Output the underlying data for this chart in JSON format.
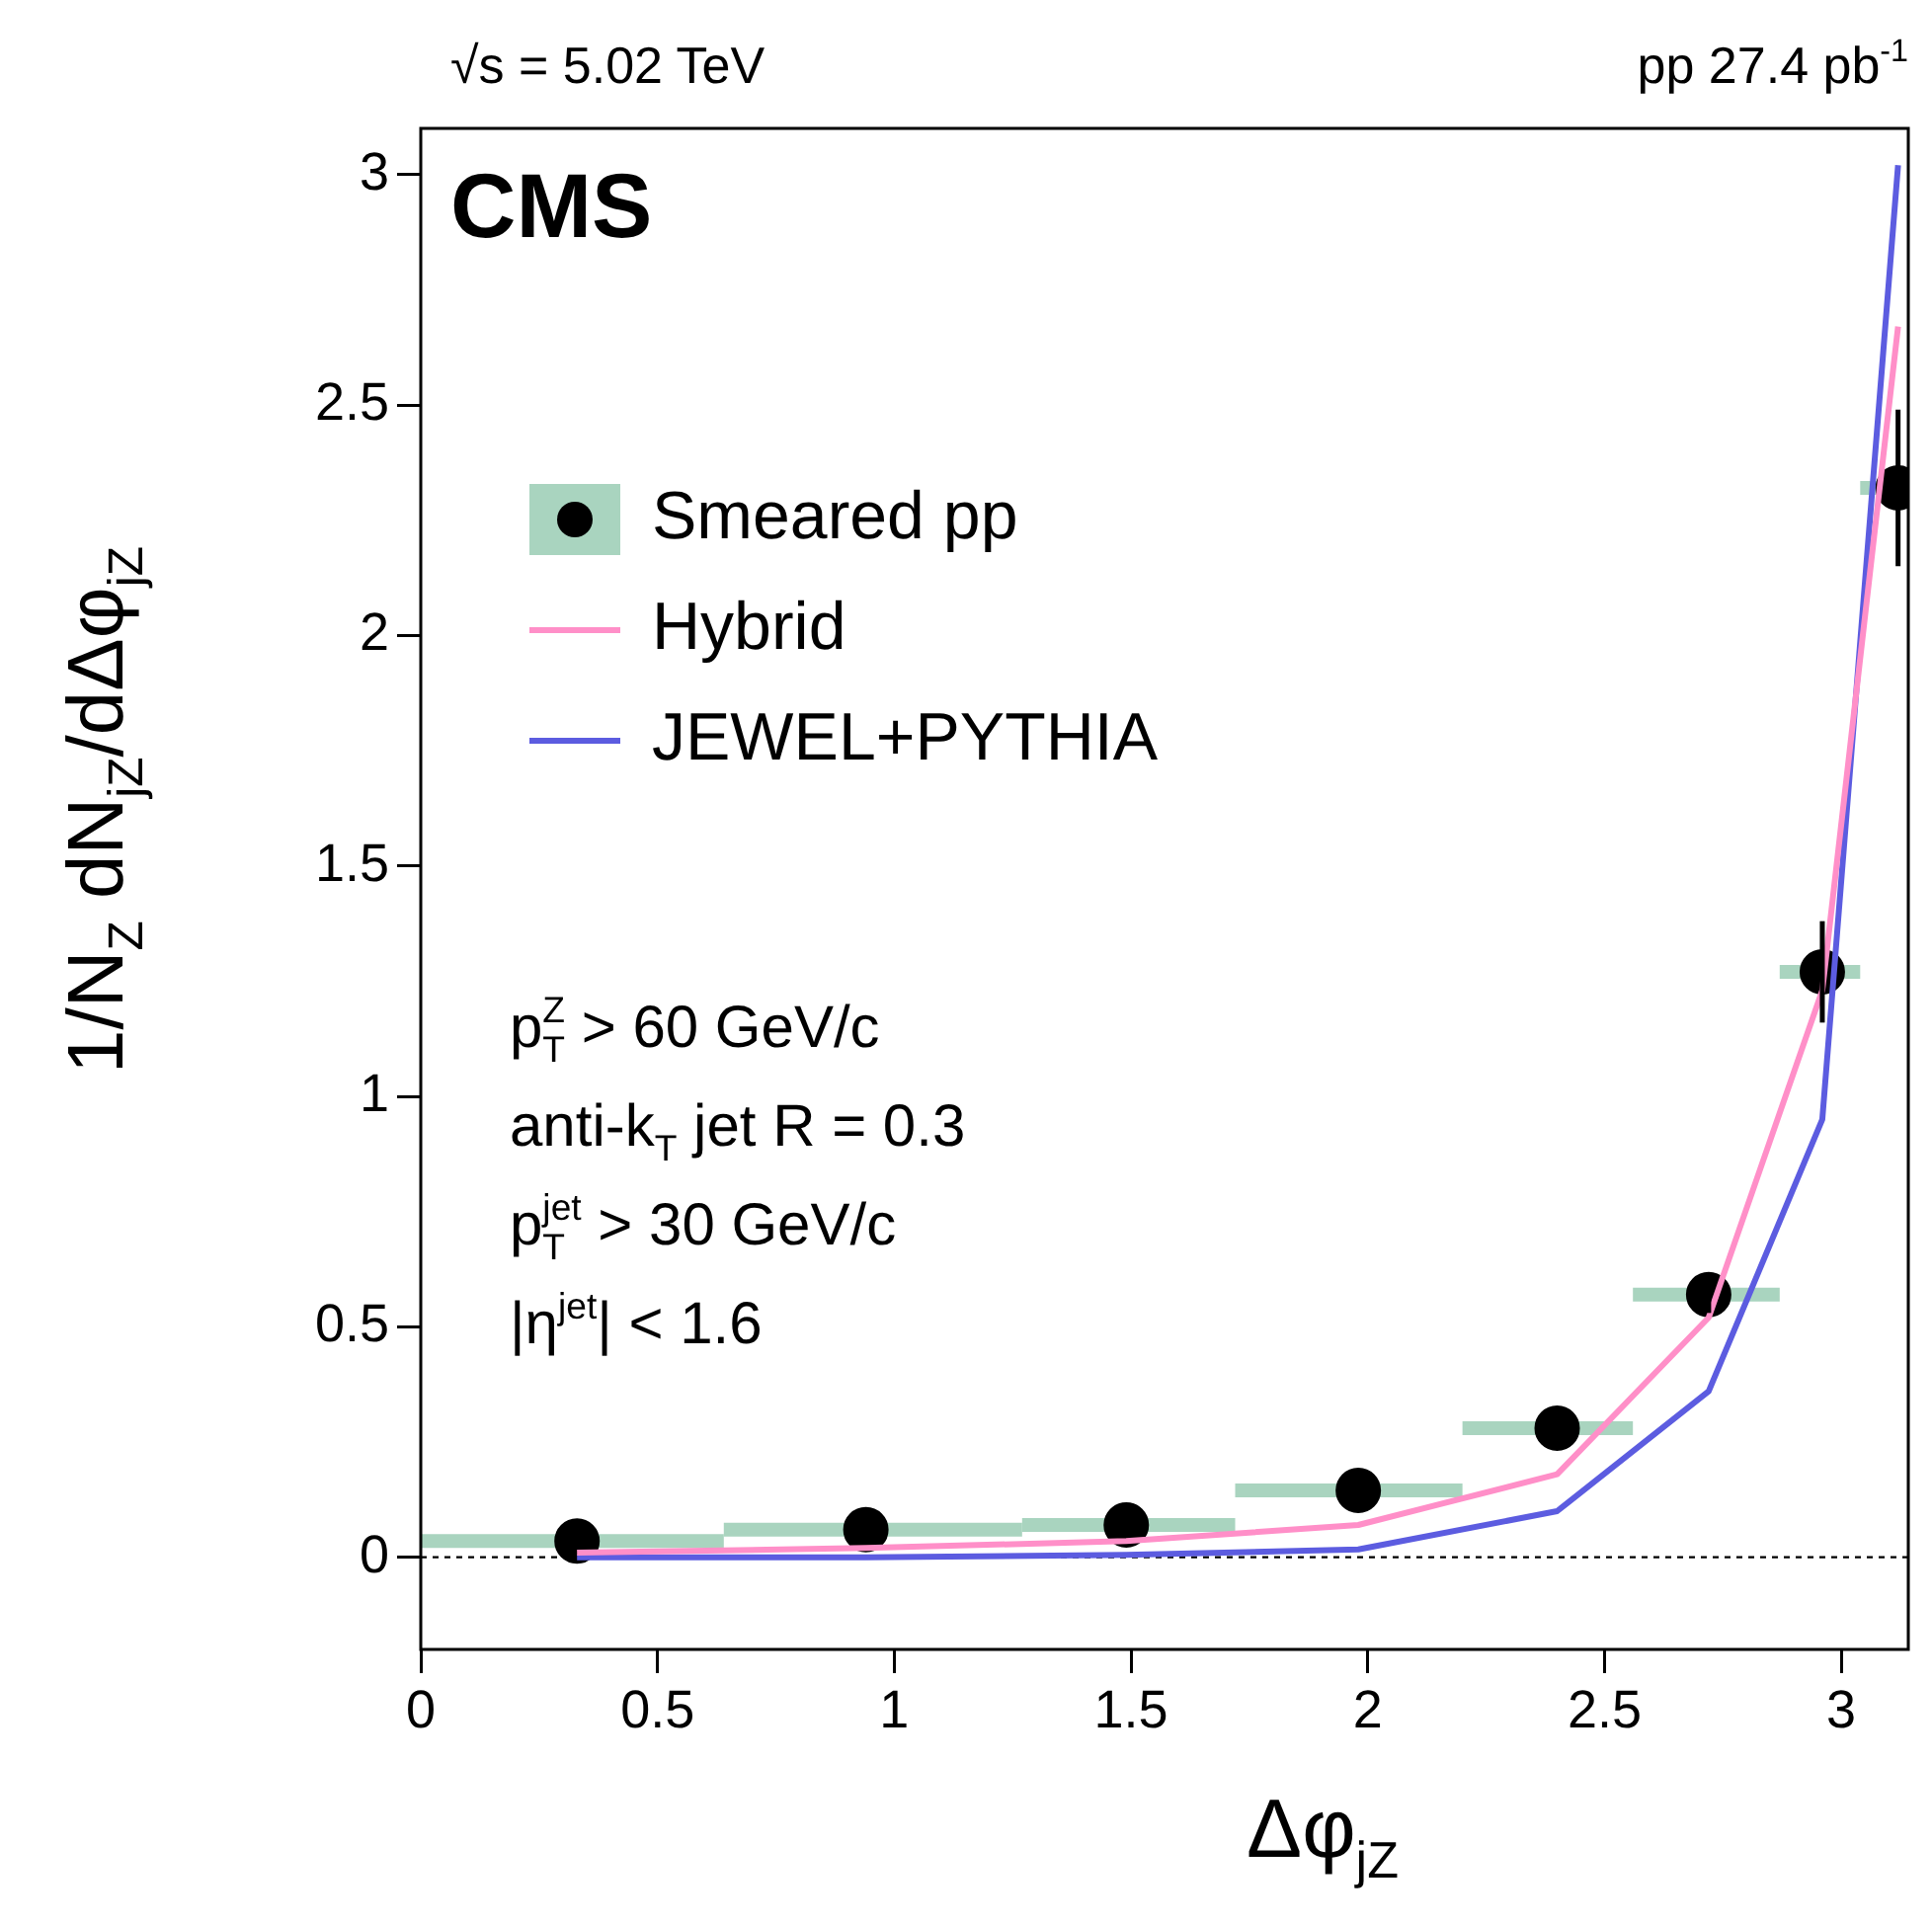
{
  "chart_data": {
    "type": "scatter",
    "title": "CMS",
    "xlabel": "Δφ$_{jZ}$",
    "ylabel": "1/N$_{Z}$ dN$_{jZ}$/dΔφ$_{jZ}$",
    "x": [
      0.33,
      0.94,
      1.49,
      1.98,
      2.4,
      2.72,
      2.96,
      3.12
    ],
    "series": [
      {
        "name": "Smeared pp",
        "type": "scatter",
        "color": "#000000",
        "values": [
          0.035,
          0.06,
          0.07,
          0.145,
          0.28,
          0.57,
          1.27,
          2.32
        ],
        "errors": [
          null,
          null,
          null,
          null,
          null,
          0.04,
          0.11,
          0.17
        ],
        "xerrors": [
          [
            0,
            0.64
          ],
          [
            0.64,
            1.27
          ],
          [
            1.27,
            1.72
          ],
          [
            1.72,
            2.2
          ],
          [
            2.2,
            2.56
          ],
          [
            2.56,
            2.87
          ],
          [
            2.87,
            3.04
          ],
          [
            3.04,
            3.1416
          ]
        ]
      },
      {
        "name": "Hybrid",
        "type": "line",
        "marker": "none",
        "color": "#ff8fc8",
        "values": [
          0.01,
          0.02,
          0.035,
          0.07,
          0.18,
          0.52,
          1.23,
          2.67
        ]
      },
      {
        "name": "JEWEL+PYTHIA",
        "type": "line",
        "marker": "none",
        "color": "#5c5ce0",
        "values": [
          0.0,
          0.0,
          0.005,
          0.017,
          0.1,
          0.36,
          0.95,
          3.02
        ]
      }
    ],
    "xlim": [
      0,
      3.1416
    ],
    "xticks": [
      0,
      0.5,
      1,
      1.5,
      2,
      2.5,
      3
    ],
    "ylim": [
      -0.2,
      3.1
    ],
    "yticks": [
      0,
      0.5,
      1,
      1.5,
      2,
      2.5,
      3
    ],
    "ref_lines": [
      {
        "axis": "y",
        "value": 0,
        "line_style": "dotted",
        "color": "#000000"
      }
    ],
    "annotations": [
      "√s = 5.02 TeV",
      "pp 27.4 pb$^{-1}$",
      "p$^{Z}$$_{T}$ > 60 GeV/c",
      "anti-k$_{T}$ jet R = 0.3",
      "p$^{jet}$$_{T}$ > 30 GeV/c",
      "|η$^{jet}$| < 1.6"
    ],
    "legend": "top left",
    "grid": false,
    "marker": "circle",
    "line_style": "solid"
  }
}
